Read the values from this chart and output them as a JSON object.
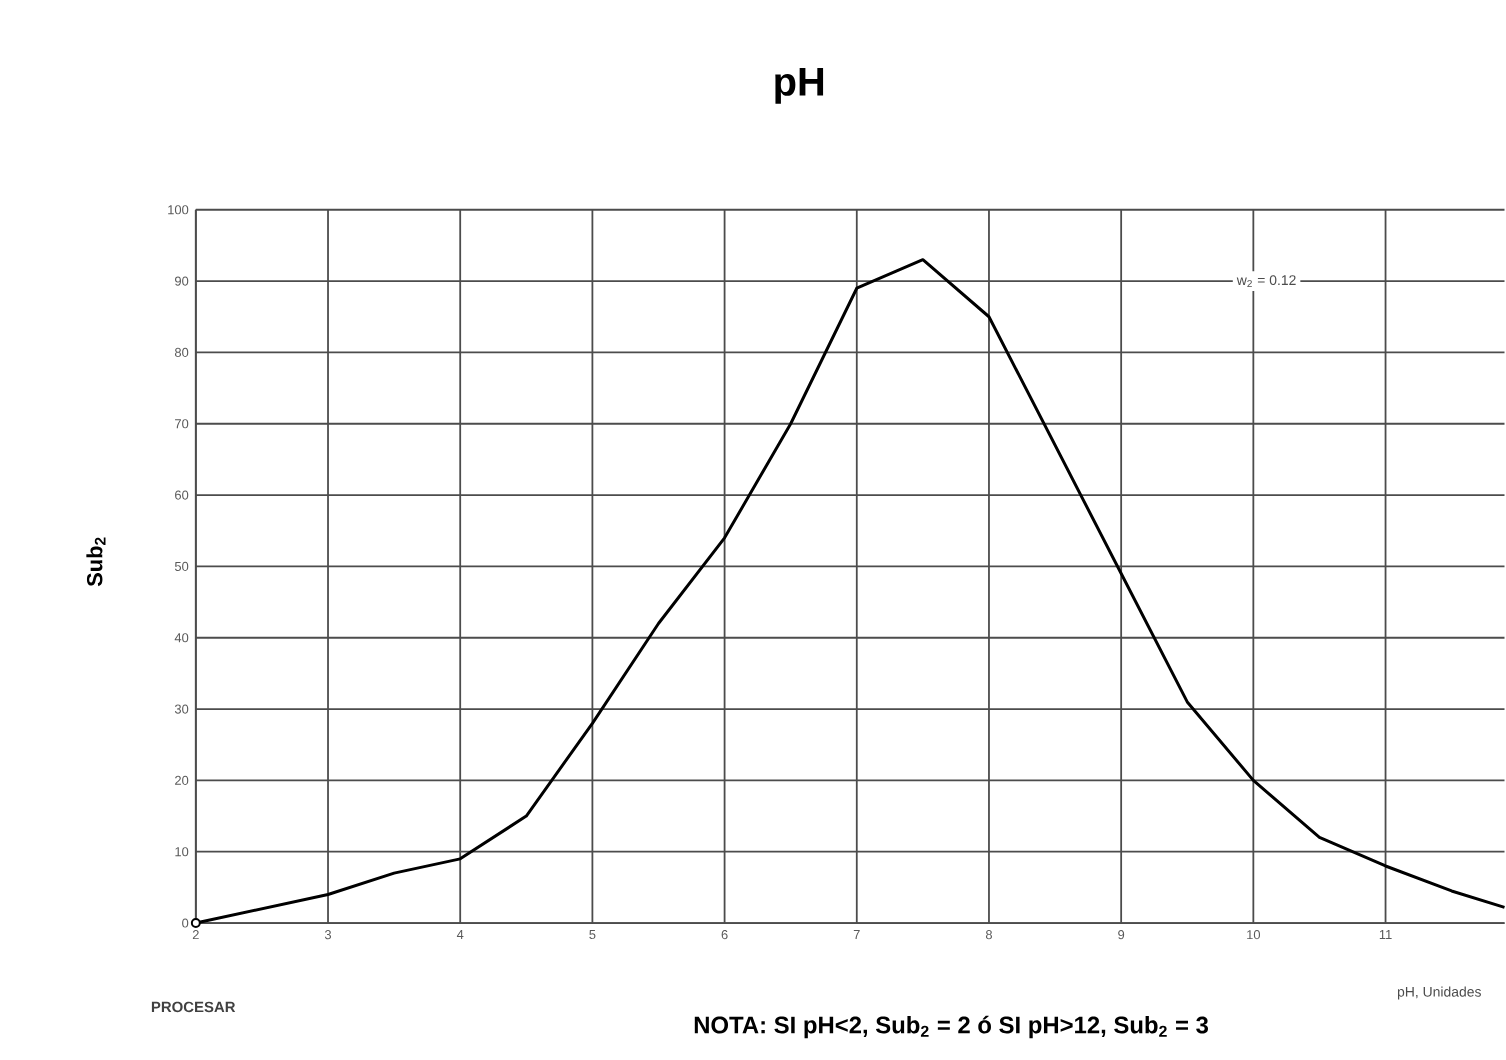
{
  "chart_data": {
    "type": "line",
    "title": "pH",
    "xlabel": "pH, Unidades",
    "ylabel": "Sub$_{2}$",
    "annotations": [
      "w$_{2}$ = 0.12",
      "PROCESAR",
      "NOTA: SI pH<2, Sub$_{2}$ = 2 ó SI pH>12, Sub$_{2}$ = 3"
    ],
    "xlim": [
      2,
      11.9
    ],
    "ylim": [
      0,
      100
    ],
    "xticks": [
      2,
      3,
      4,
      5,
      6,
      7,
      8,
      9,
      10,
      11
    ],
    "yticks": [
      0,
      10,
      20,
      30,
      40,
      50,
      60,
      70,
      80,
      90,
      100
    ],
    "grid": true,
    "series": [
      {
        "color": "#000000",
        "marker": "none",
        "x": [
          2,
          3,
          3.5,
          4,
          4.5,
          5,
          5.5,
          6,
          6.5,
          7,
          7.5,
          8,
          8.5,
          9,
          9.5,
          10,
          10.5,
          11,
          11.5,
          11.9
        ],
        "values": [
          0,
          4,
          7,
          9,
          15,
          28,
          42,
          54,
          70,
          89,
          93,
          85,
          67,
          49,
          31,
          20,
          12,
          8,
          4.5,
          2.2
        ]
      },
      {
        "type": "scatter",
        "color": "#000000",
        "marker": "circle",
        "x": [
          2
        ],
        "values": [
          0
        ]
      }
    ]
  }
}
